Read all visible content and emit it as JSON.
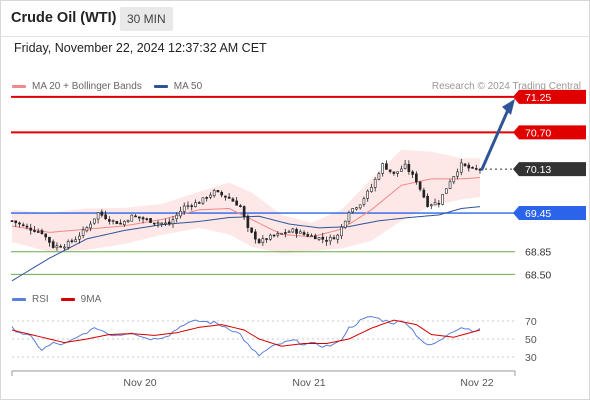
{
  "header": {
    "title": "Crude Oil (WTI)",
    "timeframe": "30 MIN"
  },
  "timestamp": "Friday, November 22, 2024 12:37:32 AM CET",
  "legend": {
    "ma20": {
      "label": "MA 20 + Bollinger Bands",
      "color": "#f08a8a"
    },
    "ma50": {
      "label": "MA 50",
      "color": "#2f5597"
    }
  },
  "credit": "Research © 2024 Trading Central",
  "rsi_legend": {
    "rsi": {
      "label": "RSI",
      "color": "#5b7fd6"
    },
    "ma9": {
      "label": "9MA",
      "color": "#d40000"
    }
  },
  "levels": [
    {
      "value": "71.25",
      "style": "resistance-target",
      "color": "#e00000"
    },
    {
      "value": "70.70",
      "style": "resistance",
      "color": "#e00000"
    },
    {
      "value": "70.13",
      "style": "last-price",
      "color": "#333333"
    },
    {
      "value": "69.45",
      "style": "pivot",
      "color": "#2b64e8"
    },
    {
      "value": "68.85",
      "style": "support",
      "color": "#6aa84f"
    },
    {
      "value": "68.50",
      "style": "support",
      "color": "#6aa84f"
    }
  ],
  "x_axis": [
    "Nov 20",
    "Nov 21",
    "Nov 22"
  ],
  "rsi_axis": [
    "70",
    "50",
    "30"
  ],
  "chart_data": {
    "type": "candlestick",
    "timeframe": "30 MIN",
    "y_range": [
      68.35,
      71.45
    ],
    "x_ticks": [
      "Nov 20",
      "Nov 21",
      "Nov 22"
    ],
    "price_anchors": [
      [
        0,
        69.33
      ],
      [
        4,
        69.22
      ],
      [
        8,
        69.15
      ],
      [
        11,
        68.93
      ],
      [
        14,
        68.95
      ],
      [
        17,
        69.05
      ],
      [
        20,
        69.22
      ],
      [
        23,
        69.45
      ],
      [
        26,
        69.35
      ],
      [
        29,
        69.28
      ],
      [
        32,
        69.4
      ],
      [
        35,
        69.36
      ],
      [
        38,
        69.31
      ],
      [
        42,
        69.28
      ],
      [
        46,
        69.55
      ],
      [
        50,
        69.62
      ],
      [
        54,
        69.78
      ],
      [
        58,
        69.68
      ],
      [
        61,
        69.55
      ],
      [
        63,
        69.2
      ],
      [
        66,
        69.0
      ],
      [
        69,
        69.08
      ],
      [
        72,
        69.13
      ],
      [
        75,
        69.18
      ],
      [
        78,
        69.12
      ],
      [
        81,
        69.08
      ],
      [
        84,
        69.03
      ],
      [
        87,
        69.1
      ],
      [
        90,
        69.48
      ],
      [
        93,
        69.6
      ],
      [
        96,
        69.85
      ],
      [
        99,
        70.2
      ],
      [
        102,
        70.05
      ],
      [
        105,
        70.18
      ],
      [
        108,
        69.95
      ],
      [
        111,
        69.58
      ],
      [
        114,
        69.62
      ],
      [
        117,
        69.95
      ],
      [
        120,
        70.2
      ],
      [
        123,
        70.12
      ],
      [
        125,
        70.13
      ]
    ],
    "ma20_anchors": [
      [
        0,
        69.25
      ],
      [
        10,
        69.15
      ],
      [
        20,
        69.2
      ],
      [
        30,
        69.25
      ],
      [
        40,
        69.35
      ],
      [
        50,
        69.5
      ],
      [
        58,
        69.52
      ],
      [
        64,
        69.35
      ],
      [
        72,
        69.12
      ],
      [
        80,
        69.08
      ],
      [
        88,
        69.2
      ],
      [
        96,
        69.5
      ],
      [
        104,
        69.88
      ],
      [
        112,
        69.98
      ],
      [
        120,
        69.98
      ],
      [
        125,
        70.0
      ]
    ],
    "bb_width_anchors": [
      [
        0,
        0.25
      ],
      [
        10,
        0.3
      ],
      [
        20,
        0.32
      ],
      [
        30,
        0.28
      ],
      [
        40,
        0.24
      ],
      [
        50,
        0.28
      ],
      [
        58,
        0.4
      ],
      [
        64,
        0.42
      ],
      [
        72,
        0.3
      ],
      [
        80,
        0.22
      ],
      [
        88,
        0.3
      ],
      [
        96,
        0.48
      ],
      [
        104,
        0.55
      ],
      [
        112,
        0.42
      ],
      [
        120,
        0.32
      ],
      [
        125,
        0.3
      ]
    ],
    "ma50_anchors": [
      [
        0,
        68.4
      ],
      [
        10,
        68.75
      ],
      [
        20,
        69.05
      ],
      [
        30,
        69.18
      ],
      [
        40,
        69.27
      ],
      [
        50,
        69.32
      ],
      [
        58,
        69.38
      ],
      [
        66,
        69.4
      ],
      [
        74,
        69.28
      ],
      [
        82,
        69.22
      ],
      [
        90,
        69.24
      ],
      [
        98,
        69.33
      ],
      [
        106,
        69.38
      ],
      [
        114,
        69.42
      ],
      [
        120,
        69.52
      ],
      [
        125,
        69.55
      ]
    ],
    "rsi_anchors": [
      [
        0,
        62
      ],
      [
        5,
        52
      ],
      [
        8,
        38
      ],
      [
        11,
        45
      ],
      [
        14,
        44
      ],
      [
        17,
        50
      ],
      [
        20,
        58
      ],
      [
        23,
        62
      ],
      [
        26,
        55
      ],
      [
        29,
        55
      ],
      [
        32,
        58
      ],
      [
        35,
        52
      ],
      [
        38,
        50
      ],
      [
        42,
        55
      ],
      [
        46,
        67
      ],
      [
        50,
        70
      ],
      [
        54,
        68
      ],
      [
        58,
        62
      ],
      [
        61,
        55
      ],
      [
        64,
        38
      ],
      [
        66,
        32
      ],
      [
        69,
        40
      ],
      [
        72,
        45
      ],
      [
        75,
        48
      ],
      [
        78,
        45
      ],
      [
        81,
        44
      ],
      [
        84,
        42
      ],
      [
        87,
        45
      ],
      [
        90,
        62
      ],
      [
        93,
        70
      ],
      [
        96,
        75
      ],
      [
        99,
        71
      ],
      [
        102,
        68
      ],
      [
        105,
        70
      ],
      [
        108,
        55
      ],
      [
        111,
        42
      ],
      [
        114,
        47
      ],
      [
        117,
        58
      ],
      [
        120,
        63
      ],
      [
        123,
        60
      ],
      [
        125,
        60
      ]
    ],
    "rsi_ma9_anchors": [
      [
        0,
        60
      ],
      [
        8,
        52
      ],
      [
        14,
        46
      ],
      [
        20,
        50
      ],
      [
        26,
        55
      ],
      [
        32,
        56
      ],
      [
        38,
        54
      ],
      [
        44,
        57
      ],
      [
        50,
        63
      ],
      [
        56,
        66
      ],
      [
        62,
        60
      ],
      [
        66,
        50
      ],
      [
        72,
        42
      ],
      [
        78,
        45
      ],
      [
        84,
        45
      ],
      [
        90,
        50
      ],
      [
        96,
        62
      ],
      [
        102,
        71
      ],
      [
        108,
        66
      ],
      [
        112,
        55
      ],
      [
        118,
        52
      ],
      [
        125,
        60
      ]
    ],
    "forecast": {
      "from": 70.13,
      "to": 71.25
    }
  }
}
